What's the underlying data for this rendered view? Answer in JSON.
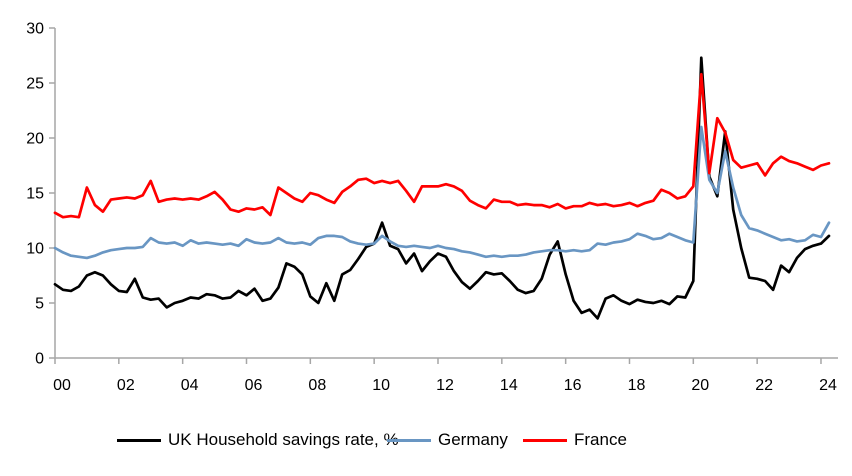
{
  "chart_data": {
    "type": "line",
    "title": "",
    "xlabel": "",
    "ylabel": "",
    "x_start_year": 2000,
    "points_per_year": 4,
    "x_tick_labels": [
      "00",
      "02",
      "04",
      "06",
      "08",
      "10",
      "12",
      "14",
      "16",
      "18",
      "20",
      "22",
      "24"
    ],
    "y_tick_labels": [
      "0",
      "5",
      "10",
      "15",
      "20",
      "25",
      "30"
    ],
    "y_ticks": [
      0,
      5,
      10,
      15,
      20,
      25,
      30
    ],
    "ylim": [
      0,
      30
    ],
    "grid": "off",
    "legend_position": "bottom",
    "axis_color": "#a6a6a6",
    "text_color": "#000000",
    "series": [
      {
        "name": "UK Household savings rate, %",
        "color": "#000000",
        "values": [
          6.7,
          6.2,
          6.1,
          6.5,
          7.5,
          7.8,
          7.5,
          6.7,
          6.1,
          6.0,
          7.2,
          5.5,
          5.3,
          5.4,
          4.6,
          5.0,
          5.2,
          5.5,
          5.4,
          5.8,
          5.7,
          5.4,
          5.5,
          6.1,
          5.7,
          6.3,
          5.2,
          5.4,
          6.4,
          8.6,
          8.3,
          7.6,
          5.6,
          5.0,
          6.8,
          5.2,
          7.6,
          8.0,
          9.0,
          10.1,
          10.4,
          12.3,
          10.2,
          9.9,
          8.6,
          9.5,
          7.9,
          8.8,
          9.5,
          9.2,
          7.9,
          6.9,
          6.3,
          7.0,
          7.8,
          7.6,
          7.7,
          7.0,
          6.2,
          5.9,
          6.1,
          7.2,
          9.4,
          10.6,
          7.6,
          5.2,
          4.1,
          4.4,
          3.6,
          5.4,
          5.7,
          5.2,
          4.9,
          5.3,
          5.1,
          5.0,
          5.2,
          4.9,
          5.6,
          5.5,
          7.0,
          27.3,
          16.5,
          14.7,
          20.6,
          13.5,
          10.0,
          7.3,
          7.2,
          7.0,
          6.2,
          8.4,
          7.8,
          9.1,
          9.9,
          10.2,
          10.4,
          11.1
        ]
      },
      {
        "name": "Germany",
        "color": "#6996c3",
        "values": [
          10.0,
          9.6,
          9.3,
          9.2,
          9.1,
          9.3,
          9.6,
          9.8,
          9.9,
          10.0,
          10.0,
          10.1,
          10.9,
          10.5,
          10.4,
          10.5,
          10.2,
          10.7,
          10.4,
          10.5,
          10.4,
          10.3,
          10.4,
          10.2,
          10.8,
          10.5,
          10.4,
          10.5,
          10.9,
          10.5,
          10.4,
          10.5,
          10.3,
          10.9,
          11.1,
          11.1,
          11.0,
          10.6,
          10.4,
          10.3,
          10.4,
          11.1,
          10.6,
          10.2,
          10.1,
          10.2,
          10.1,
          10.0,
          10.2,
          10.0,
          9.9,
          9.7,
          9.6,
          9.4,
          9.2,
          9.3,
          9.2,
          9.3,
          9.3,
          9.4,
          9.6,
          9.7,
          9.8,
          9.8,
          9.7,
          9.8,
          9.7,
          9.8,
          10.4,
          10.3,
          10.5,
          10.6,
          10.8,
          11.3,
          11.1,
          10.8,
          10.9,
          11.3,
          11.0,
          10.7,
          10.5,
          21.0,
          16.2,
          15.0,
          18.8,
          15.5,
          13.0,
          11.8,
          11.6,
          11.3,
          11.0,
          10.7,
          10.8,
          10.6,
          10.7,
          11.2,
          11.0,
          12.3
        ]
      },
      {
        "name": "France",
        "color": "#ff0000",
        "values": [
          13.2,
          12.8,
          12.9,
          12.8,
          15.5,
          13.9,
          13.3,
          14.4,
          14.5,
          14.6,
          14.5,
          14.8,
          16.1,
          14.2,
          14.4,
          14.5,
          14.4,
          14.5,
          14.4,
          14.7,
          15.1,
          14.4,
          13.5,
          13.3,
          13.6,
          13.5,
          13.7,
          13.0,
          15.5,
          15.0,
          14.5,
          14.2,
          15.0,
          14.8,
          14.4,
          14.1,
          15.1,
          15.6,
          16.2,
          16.3,
          15.9,
          16.1,
          15.9,
          16.1,
          15.2,
          14.2,
          15.6,
          15.6,
          15.6,
          15.8,
          15.6,
          15.2,
          14.3,
          13.9,
          13.6,
          14.4,
          14.2,
          14.2,
          13.9,
          14.0,
          13.9,
          13.9,
          13.7,
          14.0,
          13.6,
          13.8,
          13.8,
          14.1,
          13.9,
          14.0,
          13.8,
          13.9,
          14.1,
          13.8,
          14.1,
          14.3,
          15.3,
          15.0,
          14.5,
          14.7,
          15.6,
          25.8,
          16.8,
          21.8,
          20.5,
          18.0,
          17.3,
          17.5,
          17.7,
          16.6,
          17.7,
          18.3,
          17.9,
          17.7,
          17.4,
          17.1,
          17.5,
          17.7
        ]
      }
    ]
  },
  "legend": {
    "items": [
      {
        "label": "UK Household savings rate, %"
      },
      {
        "label": "Germany"
      },
      {
        "label": "France"
      }
    ]
  }
}
